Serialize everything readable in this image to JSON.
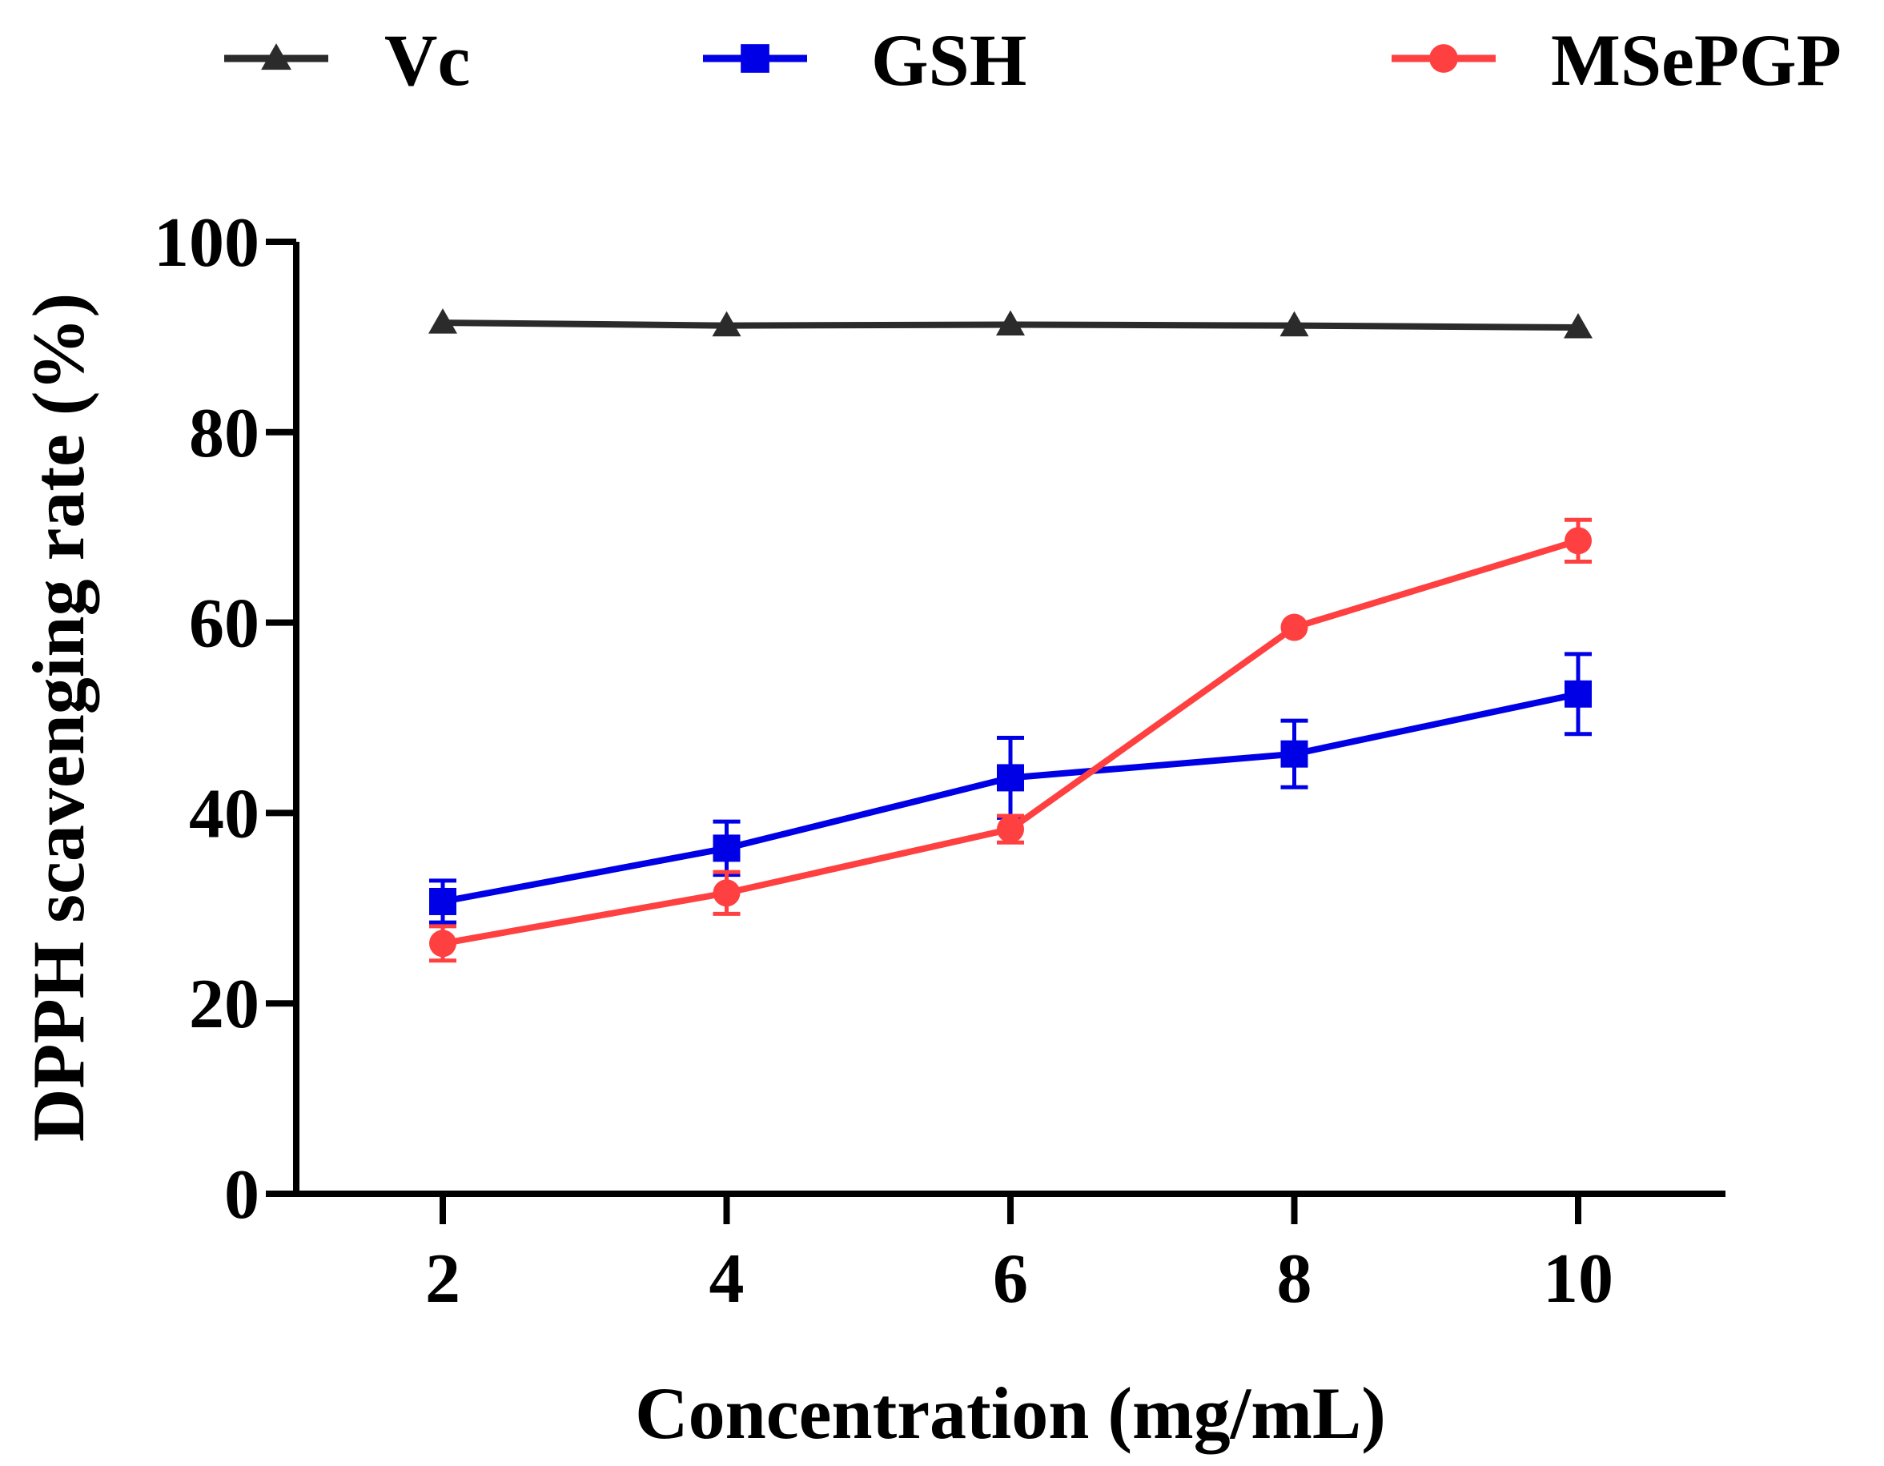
{
  "chart_data": {
    "type": "line",
    "xlabel": "Concentration (mg/mL)",
    "ylabel": "DPPH scavenging rate (%)",
    "x": [
      2,
      4,
      6,
      8,
      10
    ],
    "x_ticks": [
      "2",
      "4",
      "6",
      "8",
      "10"
    ],
    "y_ticks": [
      "0",
      "20",
      "40",
      "60",
      "80",
      "100"
    ],
    "xlim": [
      1,
      11
    ],
    "ylim": [
      0,
      100
    ],
    "grid": false,
    "legend_position": "top",
    "series": [
      {
        "name": "Vc",
        "color": "#2b2b2b",
        "marker": "triangle",
        "values": [
          91.5,
          91.2,
          91.3,
          91.2,
          91.0
        ],
        "errors": [
          0,
          0,
          0,
          0,
          0
        ]
      },
      {
        "name": "GSH",
        "color": "#0000e6",
        "marker": "square",
        "values": [
          30.7,
          36.3,
          43.7,
          46.2,
          52.5
        ],
        "errors": [
          2.2,
          2.8,
          4.2,
          3.5,
          4.2
        ]
      },
      {
        "name": "MSePGP",
        "color": "#ff4040",
        "marker": "circle",
        "values": [
          26.3,
          31.6,
          38.3,
          59.5,
          68.6
        ],
        "errors": [
          1.8,
          2.2,
          1.4,
          0,
          2.2
        ]
      }
    ]
  }
}
